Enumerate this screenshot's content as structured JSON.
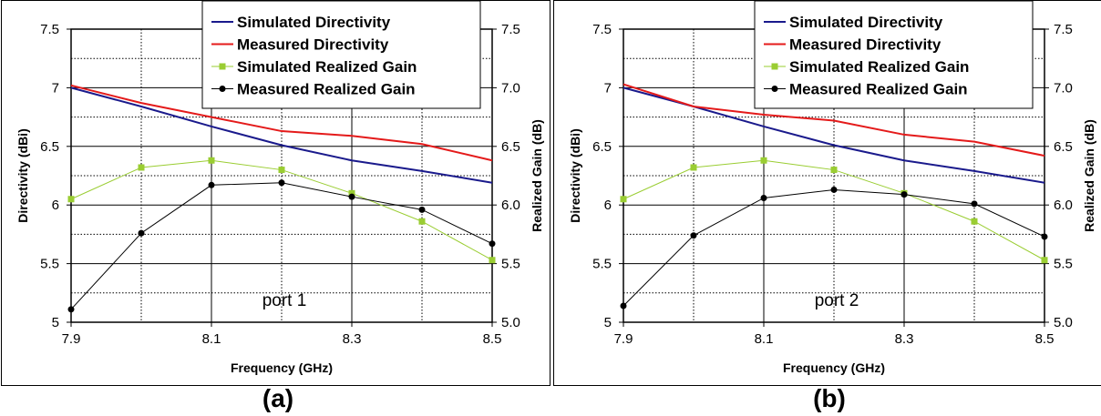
{
  "captions": [
    "(a)",
    "(b)"
  ],
  "chart_data": [
    {
      "type": "line",
      "xlabel": "Frequency (GHz)",
      "ylabel": "Directivity (dBi)",
      "ylabel_right": "Realized Gain (dB)",
      "annotation": "port 1",
      "x": [
        7.9,
        8.0,
        8.1,
        8.2,
        8.3,
        8.4,
        8.5
      ],
      "xlim": [
        7.9,
        8.5
      ],
      "xticks": [
        "7.9",
        "8.1",
        "8.3",
        "8.5"
      ],
      "ylim": [
        5,
        7.5
      ],
      "yticks_left": [
        "5",
        "5.5",
        "6",
        "6.5",
        "7",
        "7.5"
      ],
      "yticks_right": [
        "5.0",
        "5.5",
        "6.0",
        "6.5",
        "7.0",
        "7.5"
      ],
      "grid": true,
      "legend_position": "top-right",
      "series": [
        {
          "name": "Simulated Directivity",
          "color": "#1a1a8c",
          "marker": "none",
          "values": [
            7.0,
            6.84,
            6.67,
            6.51,
            6.38,
            6.29,
            6.19
          ]
        },
        {
          "name": "Measured Directivity",
          "color": "#e41a1a",
          "marker": "none",
          "values": [
            7.02,
            6.87,
            6.75,
            6.63,
            6.59,
            6.52,
            6.38
          ]
        },
        {
          "name": "Simulated Realized Gain",
          "color": "#9acd32",
          "marker": "square",
          "values": [
            6.05,
            6.32,
            6.38,
            6.3,
            6.1,
            5.86,
            5.53
          ]
        },
        {
          "name": "Measured Realized Gain",
          "color": "#000000",
          "marker": "circle",
          "values": [
            5.11,
            5.76,
            6.17,
            6.19,
            6.07,
            5.96,
            5.67
          ]
        }
      ]
    },
    {
      "type": "line",
      "xlabel": "Frequency (GHz)",
      "ylabel": "Directivity (dBi)",
      "ylabel_right": "Realized Gain (dB)",
      "annotation": "port 2",
      "x": [
        7.9,
        8.0,
        8.1,
        8.2,
        8.3,
        8.4,
        8.5
      ],
      "xlim": [
        7.9,
        8.5
      ],
      "xticks": [
        "7.9",
        "8.1",
        "8.3",
        "8.5"
      ],
      "ylim": [
        5,
        7.5
      ],
      "yticks_left": [
        "5",
        "5.5",
        "6",
        "6.5",
        "7",
        "7.5"
      ],
      "yticks_right": [
        "5.0",
        "5.5",
        "6.0",
        "6.5",
        "7.0",
        "7.5"
      ],
      "grid": true,
      "legend_position": "top-right",
      "series": [
        {
          "name": "Simulated Directivity",
          "color": "#1a1a8c",
          "marker": "none",
          "values": [
            7.0,
            6.84,
            6.67,
            6.51,
            6.38,
            6.29,
            6.19
          ]
        },
        {
          "name": "Measured Directivity",
          "color": "#e41a1a",
          "marker": "none",
          "values": [
            7.03,
            6.84,
            6.77,
            6.72,
            6.6,
            6.54,
            6.42
          ]
        },
        {
          "name": "Simulated Realized Gain",
          "color": "#9acd32",
          "marker": "square",
          "values": [
            6.05,
            6.32,
            6.38,
            6.3,
            6.1,
            5.86,
            5.53
          ]
        },
        {
          "name": "Measured Realized Gain",
          "color": "#000000",
          "marker": "circle",
          "values": [
            5.14,
            5.74,
            6.06,
            6.13,
            6.09,
            6.01,
            5.73
          ]
        }
      ]
    }
  ]
}
